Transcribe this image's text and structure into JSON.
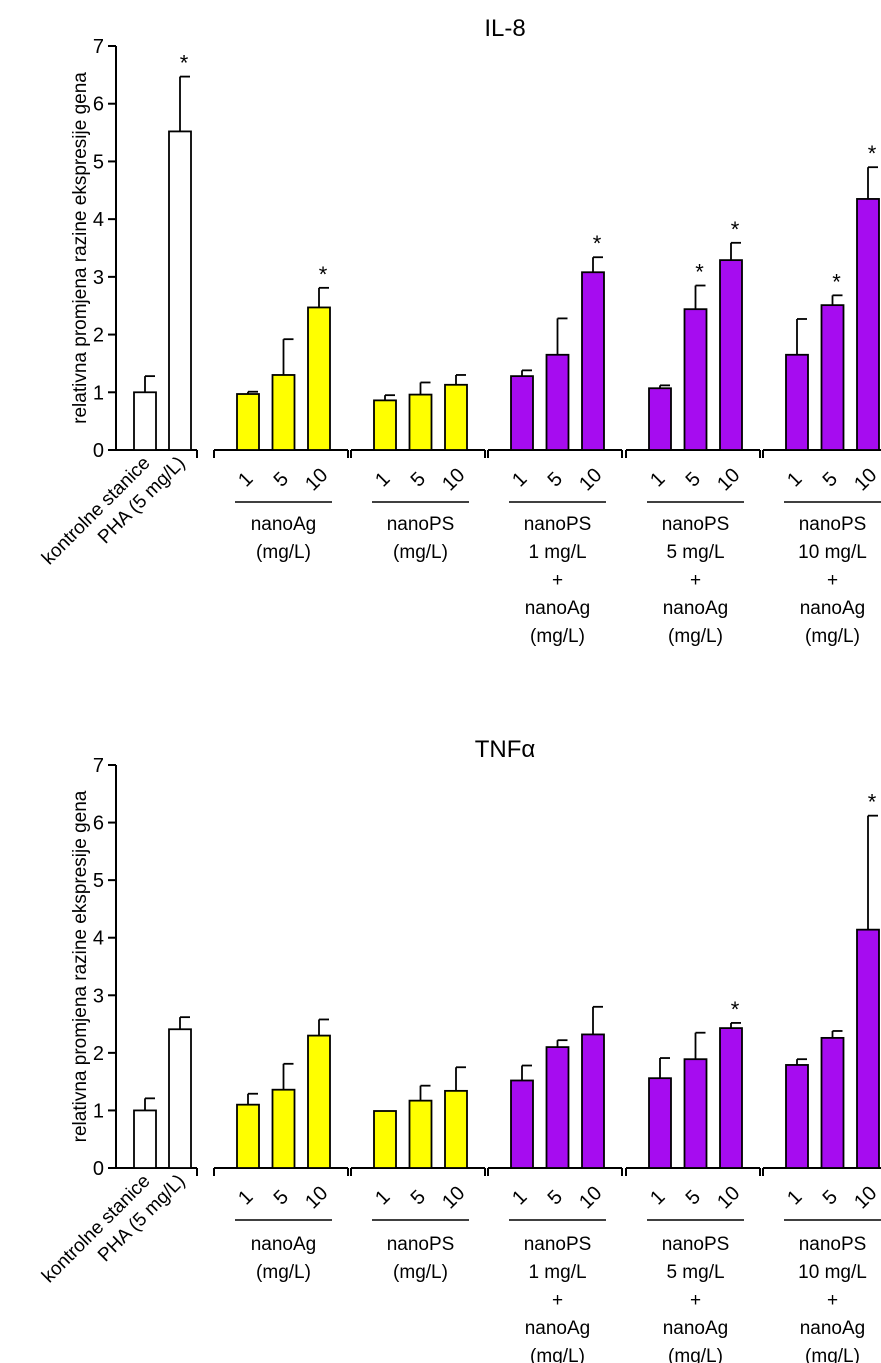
{
  "chart_data": [
    {
      "type": "bar",
      "title": "IL-8",
      "ylabel": "relativna promjena razine ekspresije gena",
      "ylim": [
        0,
        7
      ],
      "yticks": [
        0,
        1,
        2,
        3,
        4,
        5,
        6,
        7
      ],
      "control_categories": [
        "kontrolne stanice",
        "PHA (5 mg/L)"
      ],
      "control_values": [
        1.0,
        5.52
      ],
      "control_errors": [
        0.28,
        0.95
      ],
      "control_significant": [
        false,
        true
      ],
      "groups": [
        {
          "label_lines": [
            "nanoAg",
            "(mg/L)"
          ],
          "doses": [
            "1",
            "5",
            "10"
          ],
          "values": [
            0.97,
            1.3,
            2.47
          ],
          "errors": [
            0.04,
            0.62,
            0.34
          ],
          "significant": [
            false,
            false,
            true
          ],
          "color": "#ffff00"
        },
        {
          "label_lines": [
            "nanoPS",
            "(mg/L)"
          ],
          "doses": [
            "1",
            "5",
            "10"
          ],
          "values": [
            0.86,
            0.96,
            1.13
          ],
          "errors": [
            0.09,
            0.21,
            0.17
          ],
          "significant": [
            false,
            false,
            false
          ],
          "color": "#ffff00"
        },
        {
          "label_lines": [
            "nanoPS",
            "1 mg/L",
            "+",
            "nanoAg",
            "(mg/L)"
          ],
          "doses": [
            "1",
            "5",
            "10"
          ],
          "values": [
            1.28,
            1.65,
            3.08
          ],
          "errors": [
            0.1,
            0.63,
            0.26
          ],
          "significant": [
            false,
            false,
            true
          ],
          "color": "#a60cf0"
        },
        {
          "label_lines": [
            "nanoPS",
            "5 mg/L",
            "+",
            "nanoAg",
            "(mg/L)"
          ],
          "doses": [
            "1",
            "5",
            "10"
          ],
          "values": [
            1.07,
            2.44,
            3.29
          ],
          "errors": [
            0.05,
            0.41,
            0.3
          ],
          "significant": [
            false,
            true,
            true
          ],
          "color": "#a60cf0"
        },
        {
          "label_lines": [
            "nanoPS",
            "10 mg/L",
            "+",
            "nanoAg",
            "(mg/L)"
          ],
          "doses": [
            "1",
            "5",
            "10"
          ],
          "values": [
            1.65,
            2.51,
            4.35
          ],
          "errors": [
            0.62,
            0.17,
            0.55
          ],
          "significant": [
            false,
            true,
            true
          ],
          "color": "#a60cf0"
        }
      ]
    },
    {
      "type": "bar",
      "title": "TNFα",
      "ylabel": "relativna promjena razine ekspresije gena",
      "ylim": [
        0,
        7
      ],
      "yticks": [
        0,
        1,
        2,
        3,
        4,
        5,
        6,
        7
      ],
      "control_categories": [
        "kontrolne stanice",
        "PHA (5 mg/L)"
      ],
      "control_values": [
        1.0,
        2.41
      ],
      "control_errors": [
        0.21,
        0.21
      ],
      "control_significant": [
        false,
        false
      ],
      "groups": [
        {
          "label_lines": [
            "nanoAg",
            "(mg/L)"
          ],
          "doses": [
            "1",
            "5",
            "10"
          ],
          "values": [
            1.1,
            1.36,
            2.3
          ],
          "errors": [
            0.19,
            0.45,
            0.28
          ],
          "significant": [
            false,
            false,
            false
          ],
          "color": "#ffff00"
        },
        {
          "label_lines": [
            "nanoPS",
            "(mg/L)"
          ],
          "doses": [
            "1",
            "5",
            "10"
          ],
          "values": [
            0.99,
            1.17,
            1.34
          ],
          "errors": [
            0.0,
            0.26,
            0.41
          ],
          "significant": [
            false,
            false,
            false
          ],
          "color": "#ffff00"
        },
        {
          "label_lines": [
            "nanoPS",
            "1 mg/L",
            "+",
            "nanoAg",
            "(mg/L)"
          ],
          "doses": [
            "1",
            "5",
            "10"
          ],
          "values": [
            1.52,
            2.1,
            2.32
          ],
          "errors": [
            0.26,
            0.12,
            0.48
          ],
          "significant": [
            false,
            false,
            false
          ],
          "color": "#a60cf0"
        },
        {
          "label_lines": [
            "nanoPS",
            "5 mg/L",
            "+",
            "nanoAg",
            "(mg/L)"
          ],
          "doses": [
            "1",
            "5",
            "10"
          ],
          "values": [
            1.56,
            1.89,
            2.43
          ],
          "errors": [
            0.35,
            0.46,
            0.09
          ],
          "significant": [
            false,
            false,
            true
          ],
          "color": "#a60cf0"
        },
        {
          "label_lines": [
            "nanoPS",
            "10 mg/L",
            "+",
            "nanoAg",
            "(mg/L)"
          ],
          "doses": [
            "1",
            "5",
            "10"
          ],
          "values": [
            1.79,
            2.26,
            4.14
          ],
          "errors": [
            0.1,
            0.12,
            1.98
          ],
          "significant": [
            false,
            false,
            true
          ],
          "color": "#a60cf0"
        }
      ]
    }
  ]
}
